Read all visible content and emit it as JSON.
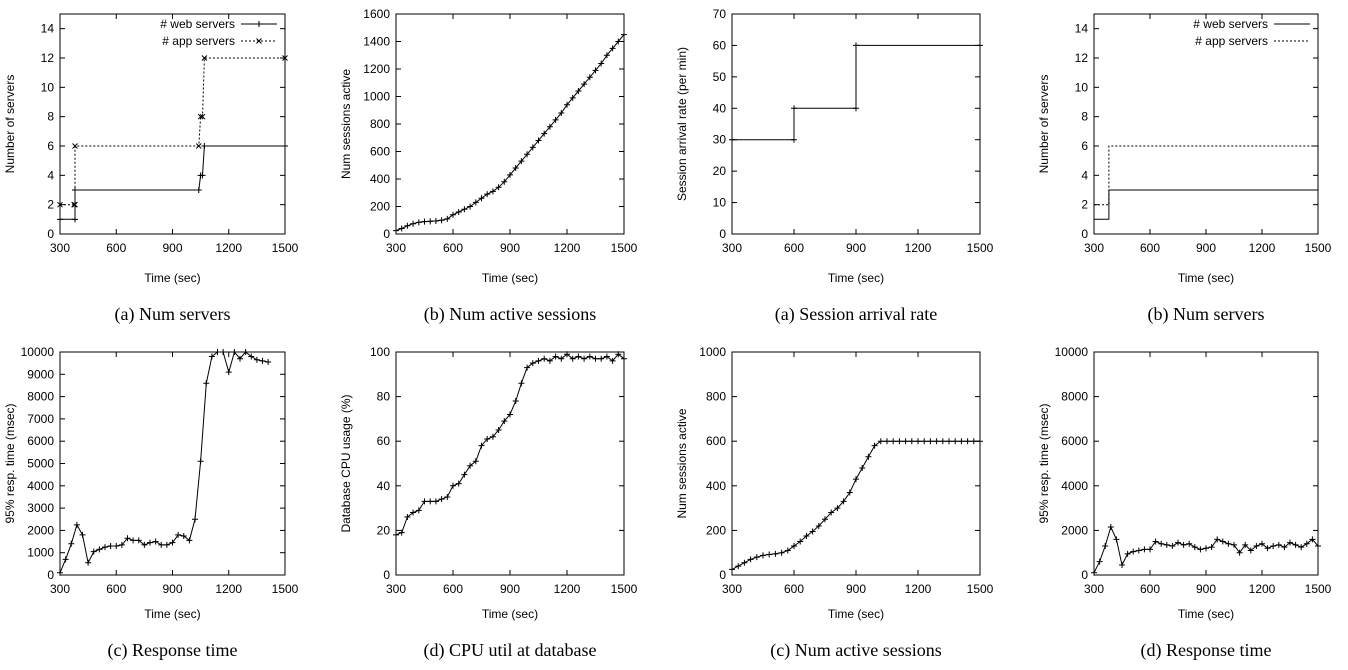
{
  "chart_data": [
    {
      "type": "line",
      "caption": "(a) Num servers",
      "xlabel": "Time (sec)",
      "ylabel": "Number of servers",
      "xlim": [
        300,
        1500
      ],
      "ylim": [
        0,
        15
      ],
      "xticks": [
        300,
        600,
        900,
        1200,
        1500
      ],
      "yticks": [
        0,
        2,
        4,
        6,
        8,
        10,
        12,
        14
      ],
      "legend": "top-right",
      "series": [
        {
          "name": "# web servers",
          "style": "solid",
          "step": true,
          "marker": "plus",
          "x": [
            300,
            380,
            380,
            1040,
            1050,
            1060,
            1070,
            1500
          ],
          "y": [
            1,
            1,
            3,
            3,
            4,
            4,
            6,
            6
          ]
        },
        {
          "name": "# app servers",
          "style": "dotted",
          "step": true,
          "marker": "x",
          "x": [
            300,
            375,
            380,
            380,
            1040,
            1050,
            1060,
            1070,
            1500
          ],
          "y": [
            2,
            2,
            2,
            6,
            6,
            8,
            8,
            12,
            12
          ]
        }
      ]
    },
    {
      "type": "line",
      "caption": "(b) Num active sessions",
      "xlabel": "Time (sec)",
      "ylabel": "Num sessions active",
      "xlim": [
        300,
        1500
      ],
      "ylim": [
        0,
        1600
      ],
      "xticks": [
        300,
        600,
        900,
        1200,
        1500
      ],
      "yticks": [
        0,
        200,
        400,
        600,
        800,
        1000,
        1200,
        1400,
        1600
      ],
      "series": [
        {
          "name": "",
          "style": "solid",
          "marker": "plus",
          "x": [
            300,
            330,
            360,
            390,
            420,
            450,
            480,
            510,
            540,
            570,
            600,
            630,
            660,
            690,
            720,
            750,
            780,
            810,
            840,
            870,
            900,
            930,
            960,
            990,
            1020,
            1050,
            1080,
            1110,
            1140,
            1170,
            1200,
            1230,
            1260,
            1290,
            1320,
            1350,
            1380,
            1410,
            1440,
            1470,
            1500
          ],
          "y": [
            25,
            40,
            60,
            75,
            85,
            90,
            92,
            95,
            100,
            110,
            140,
            160,
            180,
            200,
            230,
            260,
            290,
            310,
            340,
            380,
            430,
            480,
            530,
            580,
            630,
            680,
            730,
            780,
            830,
            880,
            940,
            990,
            1040,
            1090,
            1140,
            1190,
            1240,
            1300,
            1350,
            1400,
            1450
          ]
        }
      ]
    },
    {
      "type": "line",
      "caption": "(a) Session arrival rate",
      "xlabel": "Time (sec)",
      "ylabel": "Session arrival rate (per min)",
      "xlim": [
        300,
        1500
      ],
      "ylim": [
        0,
        70
      ],
      "xticks": [
        300,
        600,
        900,
        1200,
        1500
      ],
      "yticks": [
        0,
        10,
        20,
        30,
        40,
        50,
        60,
        70
      ],
      "series": [
        {
          "name": "",
          "style": "solid",
          "step": true,
          "marker": "plus",
          "x": [
            300,
            600,
            600,
            900,
            900,
            1500
          ],
          "y": [
            30,
            30,
            40,
            40,
            60,
            60
          ]
        }
      ]
    },
    {
      "type": "line",
      "caption": "(b) Num servers",
      "xlabel": "Time (sec)",
      "ylabel": "Number of servers",
      "xlim": [
        300,
        1500
      ],
      "ylim": [
        0,
        15
      ],
      "xticks": [
        300,
        600,
        900,
        1200,
        1500
      ],
      "yticks": [
        0,
        2,
        4,
        6,
        8,
        10,
        12,
        14
      ],
      "legend": "top-right",
      "series": [
        {
          "name": "# web servers",
          "style": "solid",
          "step": true,
          "marker": "none",
          "x": [
            300,
            380,
            380,
            1500
          ],
          "y": [
            1,
            1,
            3,
            3
          ]
        },
        {
          "name": "# app servers",
          "style": "dotted",
          "step": true,
          "marker": "none",
          "x": [
            300,
            380,
            380,
            1500
          ],
          "y": [
            2,
            2,
            6,
            6
          ]
        }
      ]
    },
    {
      "type": "line",
      "caption": "(c) Response time",
      "xlabel": "Time (sec)",
      "ylabel": "95% resp. time (msec)",
      "xlim": [
        300,
        1500
      ],
      "ylim": [
        0,
        10000
      ],
      "xticks": [
        300,
        600,
        900,
        1200,
        1500
      ],
      "yticks": [
        0,
        1000,
        2000,
        3000,
        4000,
        5000,
        6000,
        7000,
        8000,
        9000,
        10000
      ],
      "series": [
        {
          "name": "",
          "style": "solid",
          "marker": "plus",
          "x": [
            300,
            330,
            360,
            390,
            420,
            450,
            480,
            510,
            540,
            570,
            600,
            630,
            660,
            690,
            720,
            750,
            780,
            810,
            840,
            870,
            900,
            930,
            960,
            990,
            1020,
            1050,
            1080,
            1110,
            1140,
            1170,
            1200,
            1230,
            1260,
            1290,
            1320,
            1350,
            1380,
            1410
          ],
          "y": [
            100,
            700,
            1400,
            2250,
            1800,
            550,
            1050,
            1150,
            1250,
            1300,
            1300,
            1350,
            1650,
            1550,
            1550,
            1350,
            1450,
            1500,
            1350,
            1350,
            1450,
            1800,
            1750,
            1550,
            2500,
            5100,
            8600,
            9800,
            10000,
            10000,
            9100,
            10000,
            9700,
            10000,
            9800,
            9650,
            9600,
            9550
          ]
        }
      ]
    },
    {
      "type": "line",
      "caption": "(d) CPU util at database",
      "xlabel": "Time (sec)",
      "ylabel": "Database CPU usage (%)",
      "xlim": [
        300,
        1500
      ],
      "ylim": [
        0,
        100
      ],
      "xticks": [
        300,
        600,
        900,
        1200,
        1500
      ],
      "yticks": [
        0,
        20,
        40,
        60,
        80,
        100
      ],
      "series": [
        {
          "name": "",
          "style": "solid",
          "marker": "plus",
          "x": [
            300,
            330,
            360,
            390,
            420,
            450,
            480,
            510,
            540,
            570,
            600,
            630,
            660,
            690,
            720,
            750,
            780,
            810,
            840,
            870,
            900,
            930,
            960,
            990,
            1020,
            1050,
            1080,
            1110,
            1140,
            1170,
            1200,
            1230,
            1260,
            1290,
            1320,
            1350,
            1380,
            1410,
            1440,
            1470,
            1500
          ],
          "y": [
            18,
            19,
            26,
            28,
            29,
            33,
            33,
            33,
            34,
            35,
            40,
            41,
            45,
            49,
            51,
            58,
            61,
            62,
            65,
            69,
            72,
            78,
            86,
            93,
            95,
            96,
            97,
            96,
            98,
            97,
            99,
            97,
            98,
            97,
            98,
            97,
            97,
            98,
            96,
            99,
            97
          ]
        }
      ]
    },
    {
      "type": "line",
      "caption": "(c) Num active sessions",
      "xlabel": "Time (sec)",
      "ylabel": "Num sessions active",
      "xlim": [
        300,
        1500
      ],
      "ylim": [
        0,
        1000
      ],
      "xticks": [
        300,
        600,
        900,
        1200,
        1500
      ],
      "yticks": [
        0,
        200,
        400,
        600,
        800,
        1000
      ],
      "series": [
        {
          "name": "",
          "style": "solid",
          "marker": "plus",
          "x": [
            300,
            330,
            360,
            390,
            420,
            450,
            480,
            510,
            540,
            570,
            600,
            630,
            660,
            690,
            720,
            750,
            780,
            810,
            840,
            870,
            900,
            930,
            960,
            990,
            1020,
            1050,
            1080,
            1110,
            1140,
            1170,
            1200,
            1230,
            1260,
            1290,
            1320,
            1350,
            1380,
            1410,
            1440,
            1470,
            1500
          ],
          "y": [
            25,
            40,
            55,
            70,
            80,
            88,
            92,
            95,
            100,
            110,
            130,
            150,
            175,
            195,
            220,
            250,
            280,
            300,
            330,
            370,
            430,
            480,
            530,
            580,
            600,
            600,
            600,
            600,
            600,
            600,
            600,
            600,
            600,
            600,
            600,
            600,
            600,
            600,
            600,
            600,
            600
          ]
        }
      ]
    },
    {
      "type": "line",
      "caption": "(d) Response time",
      "xlabel": "Time (sec)",
      "ylabel": "95% resp. time (msec)",
      "xlim": [
        300,
        1500
      ],
      "ylim": [
        0,
        10000
      ],
      "xticks": [
        300,
        600,
        900,
        1200,
        1500
      ],
      "yticks": [
        0,
        2000,
        4000,
        6000,
        8000,
        10000
      ],
      "series": [
        {
          "name": "",
          "style": "solid",
          "marker": "plus",
          "x": [
            300,
            330,
            360,
            390,
            420,
            450,
            480,
            510,
            540,
            570,
            600,
            630,
            660,
            690,
            720,
            750,
            780,
            810,
            840,
            870,
            900,
            930,
            960,
            990,
            1020,
            1050,
            1080,
            1110,
            1140,
            1170,
            1200,
            1230,
            1260,
            1290,
            1320,
            1350,
            1380,
            1410,
            1440,
            1470,
            1500
          ],
          "y": [
            100,
            600,
            1300,
            2150,
            1600,
            450,
            950,
            1050,
            1100,
            1150,
            1150,
            1500,
            1400,
            1350,
            1300,
            1450,
            1350,
            1400,
            1250,
            1150,
            1200,
            1250,
            1600,
            1500,
            1400,
            1350,
            1000,
            1350,
            1100,
            1300,
            1400,
            1200,
            1300,
            1350,
            1250,
            1450,
            1350,
            1250,
            1400,
            1600,
            1300
          ]
        }
      ]
    }
  ]
}
